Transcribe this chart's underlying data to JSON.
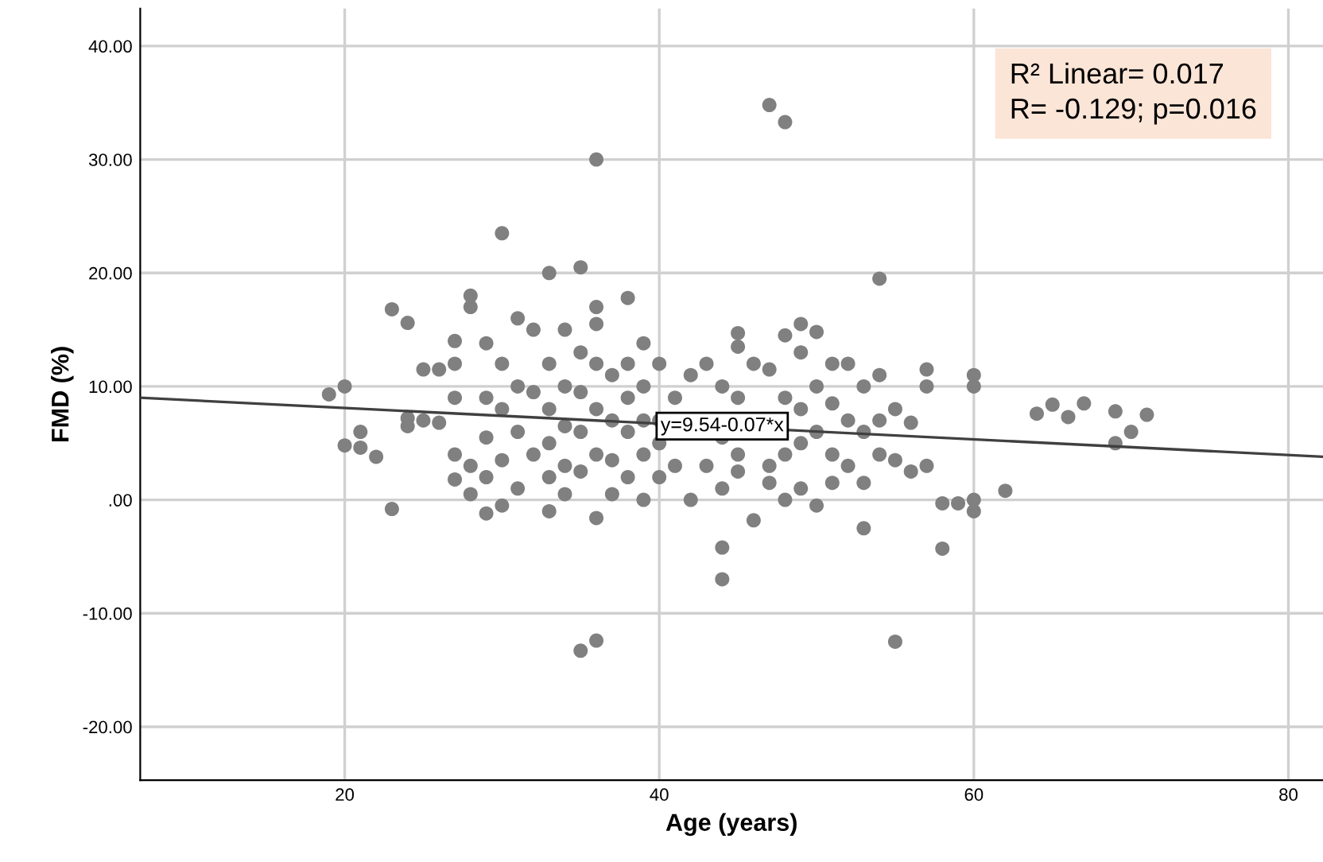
{
  "chart_data": {
    "type": "scatter",
    "xlabel": "Age (years)",
    "ylabel": "FMD (%)",
    "xlim": [
      7,
      82.2
    ],
    "ylim": [
      -24.7,
      43.3
    ],
    "xticks": [
      20,
      40,
      60,
      80
    ],
    "yticks": [
      {
        "value": -20,
        "label": "-20.00"
      },
      {
        "value": -10,
        "label": "-10.00"
      },
      {
        "value": 0,
        "label": ".00"
      },
      {
        "value": 10,
        "label": "10.00"
      },
      {
        "value": 20,
        "label": "20.00"
      },
      {
        "value": 30,
        "label": "30.00"
      },
      {
        "value": 40,
        "label": "40.00"
      }
    ],
    "grid": true,
    "marker": "circle",
    "series": [
      {
        "color": "#808080",
        "x": [
          47,
          48,
          36,
          30,
          35,
          54,
          35,
          36,
          55,
          44,
          44,
          58,
          23,
          19,
          20,
          20,
          21,
          21,
          22,
          23,
          24,
          24,
          24,
          25,
          25,
          26,
          26,
          27,
          27,
          27,
          27,
          27,
          28,
          28,
          28,
          28,
          29,
          29,
          29,
          29,
          29,
          30,
          30,
          30,
          30,
          31,
          31,
          31,
          31,
          32,
          32,
          32,
          33,
          33,
          33,
          33,
          33,
          33,
          34,
          34,
          34,
          34,
          34,
          35,
          35,
          35,
          35,
          36,
          36,
          36,
          36,
          36,
          36,
          37,
          37,
          37,
          37,
          38,
          38,
          38,
          38,
          38,
          39,
          39,
          39,
          39,
          39,
          40,
          40,
          40,
          40,
          41,
          41,
          42,
          42,
          43,
          43,
          44,
          44,
          44,
          45,
          45,
          45,
          45,
          45,
          46,
          46,
          47,
          47,
          47,
          48,
          48,
          48,
          48,
          49,
          49,
          49,
          49,
          49,
          50,
          50,
          50,
          50,
          51,
          51,
          51,
          51,
          52,
          52,
          52,
          53,
          53,
          53,
          53,
          54,
          54,
          54,
          55,
          55,
          56,
          56,
          57,
          57,
          57,
          58,
          59,
          60,
          60,
          60,
          60,
          62,
          64,
          65,
          66,
          67,
          69,
          69,
          70,
          71
        ],
        "values": [
          34.8,
          33.3,
          30,
          23.5,
          20.5,
          19.5,
          -13.3,
          -12.4,
          -12.5,
          -7,
          -4.2,
          -4.3,
          -0.8,
          9.3,
          10,
          4.8,
          4.6,
          6,
          3.8,
          16.8,
          15.6,
          6.5,
          7.2,
          11.5,
          7,
          11.5,
          6.8,
          14,
          12,
          9,
          4,
          1.8,
          18,
          17,
          3,
          0.5,
          13.8,
          9,
          5.5,
          2,
          -1.2,
          12,
          8,
          3.5,
          -0.5,
          16,
          10,
          6,
          1,
          15,
          9.5,
          4,
          20,
          12,
          8,
          5,
          2,
          -1,
          15,
          10,
          6.5,
          3,
          0.5,
          13,
          9.5,
          6,
          2.5,
          17,
          15.5,
          12,
          8,
          4,
          -1.6,
          11,
          7,
          3.5,
          0.5,
          17.8,
          12,
          9,
          6,
          2,
          13.8,
          10,
          7,
          4,
          0,
          12,
          7,
          5,
          2,
          9,
          3,
          11,
          0,
          12,
          3,
          10,
          5.5,
          1,
          14.7,
          13.5,
          9,
          4,
          2.5,
          12,
          -1.8,
          11.5,
          3,
          1.5,
          14.5,
          9,
          4,
          0,
          15.5,
          13,
          8,
          5,
          1,
          14.8,
          10,
          6,
          -0.5,
          12,
          8.5,
          4,
          1.5,
          12,
          7,
          3,
          10,
          6,
          1.5,
          -2.5,
          11,
          7,
          4,
          8,
          3.5,
          6.8,
          2.5,
          11.5,
          10,
          3,
          -0.3,
          -0.3,
          11,
          10,
          0,
          -1,
          0.8,
          7.6,
          8.4,
          7.3,
          8.5,
          7.8,
          5,
          6,
          7.5
        ]
      },
      {
        "type": "line",
        "marker": "none",
        "color": "#404040",
        "x": [
          7,
          82.2
        ],
        "values": [
          9.0,
          3.8
        ]
      }
    ],
    "annotations": [
      {
        "text": "y=9.54-0.07*x",
        "x": 44,
        "y": 6.5
      },
      "R² Linear= 0.017\nR= -0.129; p=0.016"
    ]
  }
}
